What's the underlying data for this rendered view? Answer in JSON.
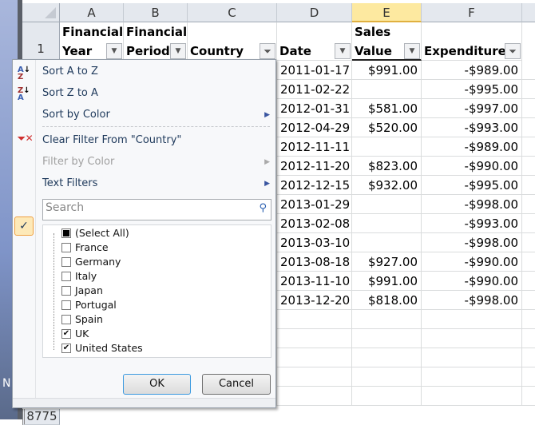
{
  "columns": [
    "A",
    "B",
    "C",
    "D",
    "E",
    "F"
  ],
  "headers": {
    "A1": "Financial",
    "A2": "Year",
    "B1": "Financial",
    "B2": "Period",
    "C": "Country",
    "D": "Date",
    "E1": "Sales",
    "E2": "Value",
    "F": "Expenditure"
  },
  "row_numbers": {
    "first": "1",
    "last": "8775"
  },
  "rows": [
    {
      "date": "2011-01-17",
      "sales": "$991.00",
      "exp": "-$989.00"
    },
    {
      "date": "2011-02-22",
      "sales": "",
      "exp": "-$995.00"
    },
    {
      "date": "2012-01-31",
      "sales": "$581.00",
      "exp": "-$997.00"
    },
    {
      "date": "2012-04-29",
      "sales": "$520.00",
      "exp": "-$993.00"
    },
    {
      "date": "2012-11-11",
      "sales": "",
      "exp": "-$989.00"
    },
    {
      "date": "2012-11-20",
      "sales": "$823.00",
      "exp": "-$990.00"
    },
    {
      "date": "2012-12-15",
      "sales": "$932.00",
      "exp": "-$995.00"
    },
    {
      "date": "2013-01-29",
      "sales": "",
      "exp": "-$998.00"
    },
    {
      "date": "2013-02-08",
      "sales": "",
      "exp": "-$993.00"
    },
    {
      "date": "2013-03-10",
      "sales": "",
      "exp": "-$998.00"
    },
    {
      "date": "2013-08-18",
      "sales": "$927.00",
      "exp": "-$990.00"
    },
    {
      "date": "2013-11-10",
      "sales": "$991.00",
      "exp": "-$990.00"
    },
    {
      "date": "2013-12-20",
      "sales": "$818.00",
      "exp": "-$998.00"
    }
  ],
  "menu": {
    "sort_az": "Sort A to Z",
    "sort_za": "Sort Z to A",
    "sort_color": "Sort by Color",
    "clear_filter": "Clear Filter From \"Country\"",
    "filter_color": "Filter by Color",
    "text_filters": "Text Filters",
    "search_placeholder": "Search",
    "items": [
      {
        "label": "(Select All)",
        "state": "partial"
      },
      {
        "label": "France",
        "state": "unchecked"
      },
      {
        "label": "Germany",
        "state": "unchecked"
      },
      {
        "label": "Italy",
        "state": "unchecked"
      },
      {
        "label": "Japan",
        "state": "unchecked"
      },
      {
        "label": "Portugal",
        "state": "unchecked"
      },
      {
        "label": "Spain",
        "state": "unchecked"
      },
      {
        "label": "UK",
        "state": "checked"
      },
      {
        "label": "United States",
        "state": "checked"
      }
    ],
    "ok": "OK",
    "cancel": "Cancel"
  },
  "desktop_fragment": "N"
}
